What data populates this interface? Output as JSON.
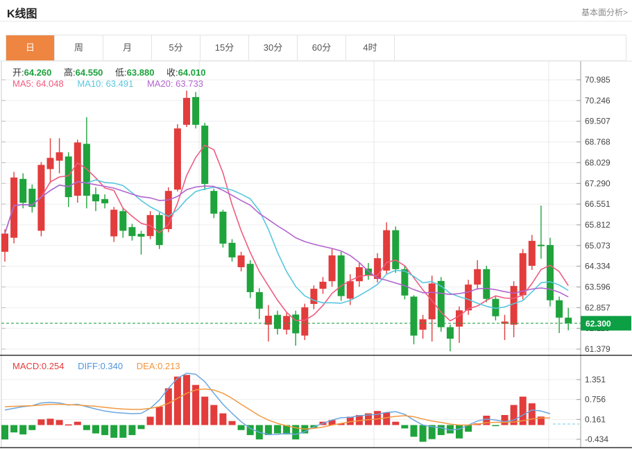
{
  "header": {
    "title": "K线图",
    "link": "基本面分析>"
  },
  "tabs": {
    "items": [
      {
        "label": "日",
        "selected": true
      },
      {
        "label": "周",
        "selected": false
      },
      {
        "label": "月",
        "selected": false
      },
      {
        "label": "5分",
        "selected": false
      },
      {
        "label": "15分",
        "selected": false
      },
      {
        "label": "30分",
        "selected": false
      },
      {
        "label": "60分",
        "selected": false
      },
      {
        "label": "4时",
        "selected": false
      }
    ]
  },
  "overlay": {
    "ohlc": [
      {
        "label": "开:",
        "value": "64.260"
      },
      {
        "label": "高:",
        "value": "64.550"
      },
      {
        "label": "低:",
        "value": "63.880"
      },
      {
        "label": "收:",
        "value": "64.010"
      }
    ],
    "ma": [
      {
        "label": "MA5:",
        "value": "64.048"
      },
      {
        "label": "MA10:",
        "value": "63.491"
      },
      {
        "label": "MA20:",
        "value": "63.733"
      }
    ],
    "macd": [
      {
        "label": "MACD:",
        "value": "0.254"
      },
      {
        "label": "DIFF:",
        "value": "0.340"
      },
      {
        "label": "DEA:",
        "value": "0.213"
      }
    ]
  },
  "price_badge": {
    "label": "62.300",
    "value": 62.3,
    "color": "#0d9f43"
  },
  "chart_data": {
    "type": "candlestick",
    "title": "K线图 (日K)",
    "up_color": "#e23c3c",
    "down_color": "#1fa33c",
    "legend": [
      "MA5",
      "MA10",
      "MA20"
    ],
    "ma_colors": [
      "#ef5b7f",
      "#56c7dd",
      "#b263ce"
    ],
    "y_axis_labels": [
      "70.985",
      "70.246",
      "69.507",
      "68.768",
      "68.029",
      "67.290",
      "66.551",
      "65.812",
      "65.073",
      "64.334",
      "63.596",
      "62.857",
      "62.118",
      "61.379"
    ],
    "y_range": [
      61.379,
      70.985
    ],
    "grid": true,
    "current_price_line": 62.3,
    "candles_ohlc": [
      [
        64.85,
        65.65,
        64.5,
        65.5
      ],
      [
        65.35,
        67.7,
        65.15,
        67.5
      ],
      [
        67.45,
        67.65,
        66.4,
        66.6
      ],
      [
        67.1,
        67.25,
        66.25,
        66.45
      ],
      [
        65.6,
        68.05,
        65.4,
        67.95
      ],
      [
        67.8,
        68.9,
        67.3,
        68.2
      ],
      [
        68.1,
        68.9,
        67.65,
        68.4
      ],
      [
        68.25,
        68.4,
        66.45,
        66.8
      ],
      [
        66.85,
        68.85,
        66.6,
        68.75
      ],
      [
        68.7,
        69.65,
        66.4,
        66.85
      ],
      [
        66.9,
        67.15,
        66.3,
        66.65
      ],
      [
        66.73,
        66.9,
        66.4,
        66.58
      ],
      [
        65.4,
        66.45,
        65.2,
        66.35
      ],
      [
        66.3,
        66.4,
        65.35,
        65.6
      ],
      [
        65.73,
        65.85,
        65.25,
        65.41
      ],
      [
        65.49,
        65.6,
        64.75,
        65.39
      ],
      [
        65.41,
        66.3,
        65.3,
        66.16
      ],
      [
        66.16,
        66.25,
        64.95,
        65.09
      ],
      [
        65.66,
        67.15,
        65.55,
        67.02
      ],
      [
        67.07,
        69.4,
        67.0,
        69.25
      ],
      [
        69.38,
        70.6,
        69.3,
        70.34
      ],
      [
        70.37,
        70.55,
        69.25,
        69.38
      ],
      [
        69.35,
        69.45,
        67.05,
        67.27
      ],
      [
        67.02,
        67.1,
        66.05,
        66.21
      ],
      [
        66.28,
        66.35,
        65.0,
        65.14
      ],
      [
        65.17,
        65.3,
        64.5,
        64.65
      ],
      [
        64.3,
        64.85,
        64.15,
        64.72
      ],
      [
        64.42,
        64.55,
        63.2,
        63.41
      ],
      [
        63.41,
        63.55,
        62.45,
        62.82
      ],
      [
        62.25,
        62.95,
        61.65,
        62.57
      ],
      [
        62.6,
        62.75,
        61.9,
        62.1
      ],
      [
        62.07,
        62.7,
        61.9,
        62.56
      ],
      [
        62.61,
        62.75,
        61.5,
        61.94
      ],
      [
        61.86,
        63.0,
        61.7,
        62.87
      ],
      [
        62.99,
        63.65,
        62.8,
        63.53
      ],
      [
        63.53,
        63.95,
        63.35,
        63.78
      ],
      [
        63.8,
        64.95,
        63.6,
        64.72
      ],
      [
        64.72,
        64.85,
        63.1,
        63.27
      ],
      [
        63.18,
        64.05,
        62.95,
        63.8
      ],
      [
        63.8,
        64.45,
        63.6,
        64.3
      ],
      [
        64.25,
        64.45,
        63.85,
        64.0
      ],
      [
        63.88,
        64.8,
        63.75,
        64.62
      ],
      [
        64.18,
        65.9,
        64.05,
        65.62
      ],
      [
        65.62,
        65.75,
        64.1,
        64.23
      ],
      [
        64.23,
        64.35,
        63.15,
        63.29
      ],
      [
        63.25,
        63.3,
        61.55,
        61.86
      ],
      [
        62.07,
        62.6,
        61.75,
        62.44
      ],
      [
        62.44,
        64.0,
        61.65,
        63.72
      ],
      [
        63.81,
        63.95,
        62.0,
        62.16
      ],
      [
        62.16,
        62.25,
        61.3,
        61.75
      ],
      [
        62.18,
        62.9,
        61.6,
        62.76
      ],
      [
        62.76,
        63.85,
        62.6,
        63.68
      ],
      [
        63.68,
        64.55,
        63.5,
        64.23
      ],
      [
        64.23,
        64.35,
        63.05,
        63.17
      ],
      [
        63.17,
        63.25,
        62.4,
        62.55
      ],
      [
        62.28,
        62.6,
        61.7,
        62.36
      ],
      [
        62.25,
        63.8,
        61.8,
        63.63
      ],
      [
        63.3,
        64.95,
        63.15,
        64.8
      ],
      [
        64.35,
        65.45,
        64.2,
        65.24
      ],
      [
        65.1,
        66.5,
        64.6,
        65.05
      ],
      [
        65.09,
        65.35,
        62.9,
        63.12
      ],
      [
        63.12,
        63.25,
        61.95,
        62.5
      ],
      [
        62.5,
        62.85,
        62.05,
        62.3
      ]
    ],
    "macd": {
      "axis_labels": [
        "1.351",
        "0.756",
        "0.161",
        "-0.434"
      ],
      "bars": [
        -0.43,
        -0.22,
        -0.28,
        -0.15,
        0.17,
        0.19,
        0.15,
        0.02,
        0.1,
        -0.15,
        -0.25,
        -0.3,
        -0.38,
        -0.38,
        -0.3,
        -0.12,
        0.25,
        0.55,
        1.1,
        1.45,
        1.5,
        1.2,
        0.85,
        0.6,
        0.35,
        0.12,
        -0.15,
        -0.3,
        -0.43,
        -0.3,
        -0.25,
        -0.28,
        -0.43,
        -0.25,
        -0.08,
        0.1,
        0.15,
        0.05,
        0.25,
        0.3,
        0.35,
        0.42,
        0.38,
        0.1,
        -0.1,
        -0.35,
        -0.5,
        -0.42,
        -0.3,
        -0.25,
        -0.4,
        -0.2,
        0.05,
        0.28,
        -0.03,
        0.3,
        0.6,
        0.85,
        0.65,
        0.254,
        null,
        null,
        null
      ],
      "diff": [
        0.45,
        0.5,
        0.55,
        0.58,
        0.66,
        0.68,
        0.66,
        0.6,
        0.62,
        0.55,
        0.48,
        0.42,
        0.38,
        0.36,
        0.34,
        0.35,
        0.5,
        0.75,
        1.1,
        1.4,
        1.55,
        1.52,
        1.3,
        0.95,
        0.62,
        0.35,
        0.1,
        -0.1,
        -0.22,
        -0.28,
        -0.28,
        -0.25,
        -0.28,
        -0.2,
        -0.05,
        0.05,
        0.15,
        0.22,
        0.23,
        0.28,
        0.3,
        0.32,
        0.38,
        0.4,
        0.32,
        0.15,
        0.0,
        -0.05,
        -0.08,
        -0.15,
        -0.12,
        0.0,
        0.12,
        0.18,
        0.15,
        0.1,
        0.15,
        0.3,
        0.45,
        0.42,
        0.34
      ],
      "dea": [
        0.55,
        0.56,
        0.57,
        0.58,
        0.6,
        0.62,
        0.62,
        0.61,
        0.6,
        0.58,
        0.56,
        0.53,
        0.5,
        0.48,
        0.47,
        0.47,
        0.5,
        0.55,
        0.65,
        0.8,
        0.95,
        1.05,
        1.08,
        1.05,
        0.95,
        0.8,
        0.62,
        0.45,
        0.28,
        0.15,
        0.05,
        -0.02,
        -0.08,
        -0.12,
        -0.1,
        -0.06,
        0.0,
        0.05,
        0.1,
        0.13,
        0.16,
        0.18,
        0.22,
        0.26,
        0.28,
        0.25,
        0.18,
        0.12,
        0.08,
        0.03,
        0.0,
        0.0,
        0.03,
        0.07,
        0.08,
        0.08,
        0.09,
        0.13,
        0.18,
        0.21,
        0.213
      ]
    }
  }
}
